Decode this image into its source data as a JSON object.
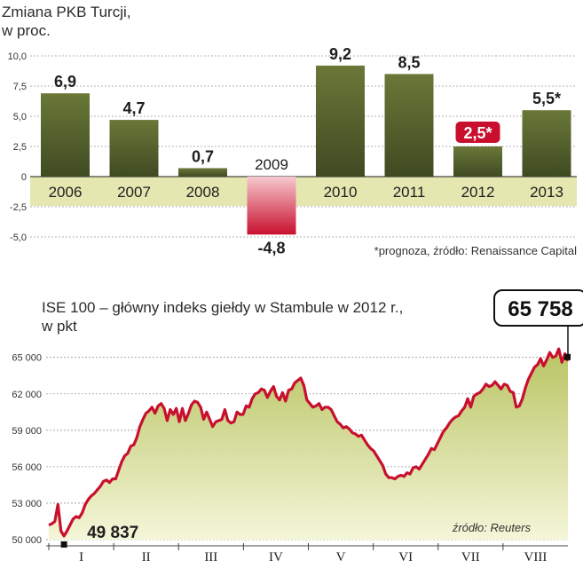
{
  "colors": {
    "bar_positive": "#4f5b2c",
    "bar_highlight_top": "#6a7838",
    "bar_negative": "#c8102e",
    "band": "#e4e7b0",
    "line": "#c8102e",
    "area_top": "#b9c463",
    "area_bottom": "#f4f6d8",
    "grid": "#9a9a9a"
  },
  "chart_data": [
    {
      "type": "bar",
      "title": "Zmiana PKB Turcji,",
      "subtitle": "w proc.",
      "categories": [
        "2006",
        "2007",
        "2008",
        "2009",
        "2010",
        "2011",
        "2012",
        "2013"
      ],
      "values": [
        6.9,
        4.7,
        0.7,
        -4.8,
        9.2,
        8.5,
        2.5,
        5.5
      ],
      "value_labels": [
        "6,9",
        "4,7",
        "0,7",
        "-4,8",
        "9,2",
        "8,5",
        "2,5*",
        "5,5*"
      ],
      "forecast_highlight": "2,5*",
      "ylim": [
        -5,
        10
      ],
      "yticks": [
        "10,0",
        "7,5",
        "5,0",
        "2,5",
        "0",
        "-2,5",
        "-5,0"
      ],
      "yticks_values": [
        10,
        7.5,
        5,
        2.5,
        0,
        -2.5,
        -5
      ],
      "note": "*prognoza, źródło: Renaissance Capital",
      "grid": true
    },
    {
      "type": "area",
      "title": "ISE 100 – główny indeks giełdy w Stambule w 2012 r.,",
      "subtitle": "w pkt",
      "ylim": [
        50000,
        66000
      ],
      "yticks": [
        "65 000",
        "62 000",
        "59 000",
        "56 000",
        "53 000",
        "50 000"
      ],
      "yticks_values": [
        65000,
        62000,
        59000,
        56000,
        53000,
        50000
      ],
      "months": [
        "I",
        "II",
        "III",
        "IV",
        "V",
        "VI",
        "VII",
        "VIII"
      ],
      "min_label": "49 837",
      "max_label": "65 758",
      "source": "źródło: Reuters",
      "x_range": [
        0,
        169
      ],
      "y": [
        51200,
        51300,
        51500,
        52900,
        50700,
        50300,
        50700,
        51200,
        51700,
        51900,
        51800,
        52200,
        52900,
        53300,
        53600,
        53800,
        54100,
        54400,
        54800,
        54900,
        54700,
        55000,
        55000,
        55700,
        56400,
        56900,
        57100,
        57700,
        57800,
        58400,
        59300,
        59900,
        60400,
        60600,
        60900,
        60400,
        61000,
        61200,
        60800,
        59800,
        60700,
        60300,
        60800,
        59700,
        60800,
        59800,
        60400,
        61100,
        61400,
        61300,
        60900,
        59900,
        60500,
        59900,
        59300,
        59700,
        59800,
        59900,
        60700,
        59800,
        59600,
        59700,
        60500,
        60300,
        60300,
        61000,
        60900,
        61600,
        62000,
        62100,
        62400,
        62300,
        61700,
        62200,
        62600,
        61800,
        61500,
        62100,
        61400,
        62300,
        62400,
        62900,
        63100,
        63300,
        62700,
        61500,
        61200,
        60900,
        61000,
        61200,
        60700,
        60900,
        60900,
        60700,
        60200,
        59700,
        59500,
        59200,
        59300,
        59100,
        58800,
        58700,
        58500,
        58600,
        58200,
        57800,
        57500,
        57300,
        56900,
        56500,
        56100,
        55400,
        55100,
        55100,
        55000,
        55200,
        55300,
        55200,
        55500,
        55400,
        55900,
        56000,
        55800,
        56200,
        56600,
        57000,
        57500,
        57400,
        57900,
        58400,
        58900,
        59200,
        59600,
        59900,
        60100,
        60200,
        60600,
        60900,
        61600,
        60900,
        61800,
        62000,
        62100,
        62400,
        62800,
        62600,
        62700,
        63000,
        62700,
        62400,
        62800,
        62700,
        62200,
        62100,
        60900,
        61000,
        61600,
        62500,
        63200,
        63700,
        64200,
        64400,
        64900,
        64300,
        64800,
        65400,
        65000,
        65100,
        65700,
        64600,
        65300,
        64700
      ]
    }
  ]
}
